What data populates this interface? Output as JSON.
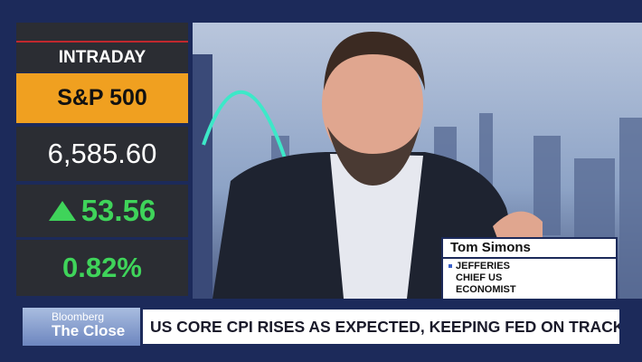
{
  "ticker": {
    "label": "INTRADAY",
    "index": "S&P 500",
    "price": "6,585.60",
    "change": "53.56",
    "change_pct": "0.82%"
  },
  "guest": {
    "name": "Tom Simons",
    "title": [
      "JEFFERIES",
      "CHIEF US",
      "ECONOMIST"
    ]
  },
  "show": {
    "brand": "Bloomberg",
    "name": "The Close"
  },
  "headline": "US CORE CPI RISES AS EXPECTED, KEEPING FED ON TRACK FOR CUT"
}
